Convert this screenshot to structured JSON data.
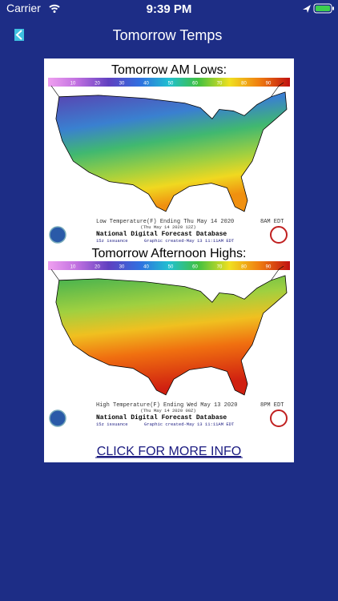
{
  "status_bar": {
    "carrier": "Carrier",
    "time": "9:39 PM"
  },
  "nav": {
    "title": "Tomorrow Temps"
  },
  "panels": [
    {
      "title": "Tomorrow AM Lows:",
      "scale_labels": [
        "10",
        "20",
        "30",
        "40",
        "50",
        "60",
        "70",
        "80",
        "90"
      ],
      "caption": "Low Temperature(F) Ending Thu May 14 2020",
      "caption_time": "8AM EDT",
      "valid": "(Thu May 14 2020 12Z)",
      "database": "National Digital Forecast Database",
      "issuance": "15z issuance",
      "created": "Graphic created-May 13 11:11AM EDT"
    },
    {
      "title": "Tomorrow Afternoon Highs:",
      "scale_labels": [
        "10",
        "20",
        "30",
        "40",
        "50",
        "60",
        "70",
        "80",
        "90"
      ],
      "caption": "High Temperature(F) Ending Wed May 13 2020",
      "caption_time": "8PM EDT",
      "valid": "(Thu May 14 2020 00Z)",
      "database": "National Digital Forecast Database",
      "issuance": "15z issuance",
      "created": "Graphic created-May 13 11:11AM EDT"
    }
  ],
  "link": "CLICK FOR MORE INFO"
}
